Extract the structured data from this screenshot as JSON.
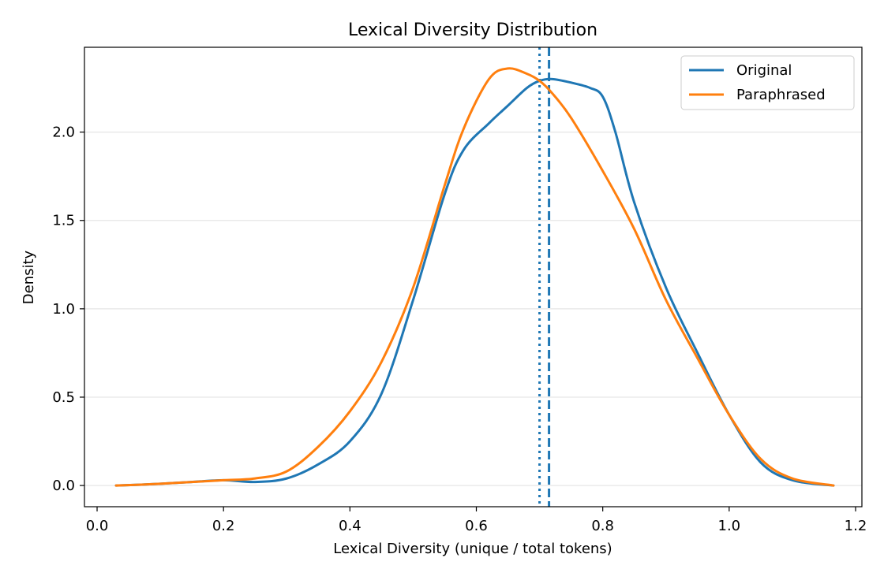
{
  "chart_data": {
    "type": "line",
    "title": "Lexical Diversity Distribution",
    "xlabel": "Lexical Diversity (unique / total tokens)",
    "ylabel": "Density",
    "xlim": [
      -0.02,
      1.21
    ],
    "ylim": [
      -0.12,
      2.48
    ],
    "xticks": [
      "0.0",
      "0.2",
      "0.4",
      "0.6",
      "0.8",
      "1.0",
      "1.2"
    ],
    "yticks": [
      "0.0",
      "0.5",
      "1.0",
      "1.5",
      "2.0"
    ],
    "grid": "horizontal",
    "legend_position": "top-right",
    "series": [
      {
        "name": "Original",
        "color": "#1f77b4",
        "x": [
          0.03,
          0.07,
          0.1,
          0.15,
          0.2,
          0.25,
          0.3,
          0.35,
          0.4,
          0.45,
          0.5,
          0.55,
          0.58,
          0.62,
          0.65,
          0.68,
          0.7,
          0.72,
          0.75,
          0.78,
          0.8,
          0.82,
          0.85,
          0.9,
          0.95,
          1.0,
          1.05,
          1.1,
          1.165
        ],
        "y": [
          0.0,
          0.005,
          0.01,
          0.02,
          0.03,
          0.02,
          0.04,
          0.12,
          0.25,
          0.52,
          1.05,
          1.65,
          1.9,
          2.05,
          2.15,
          2.25,
          2.29,
          2.3,
          2.28,
          2.25,
          2.2,
          2.0,
          1.6,
          1.12,
          0.75,
          0.4,
          0.13,
          0.03,
          0.0
        ]
      },
      {
        "name": "Paraphrased",
        "color": "#ff7f0e",
        "x": [
          0.03,
          0.07,
          0.1,
          0.15,
          0.2,
          0.25,
          0.3,
          0.35,
          0.4,
          0.45,
          0.5,
          0.55,
          0.58,
          0.62,
          0.65,
          0.68,
          0.7,
          0.72,
          0.75,
          0.8,
          0.85,
          0.9,
          0.95,
          1.0,
          1.05,
          1.1,
          1.165
        ],
        "y": [
          0.0,
          0.005,
          0.01,
          0.02,
          0.03,
          0.04,
          0.08,
          0.22,
          0.42,
          0.7,
          1.12,
          1.7,
          2.02,
          2.3,
          2.36,
          2.33,
          2.29,
          2.22,
          2.08,
          1.78,
          1.45,
          1.05,
          0.72,
          0.4,
          0.15,
          0.04,
          0.0
        ]
      }
    ],
    "reference_lines": [
      {
        "x": 0.7,
        "style": "dotted",
        "color": "#1f77b4"
      },
      {
        "x": 0.715,
        "style": "dashed",
        "color": "#1f77b4"
      }
    ]
  }
}
